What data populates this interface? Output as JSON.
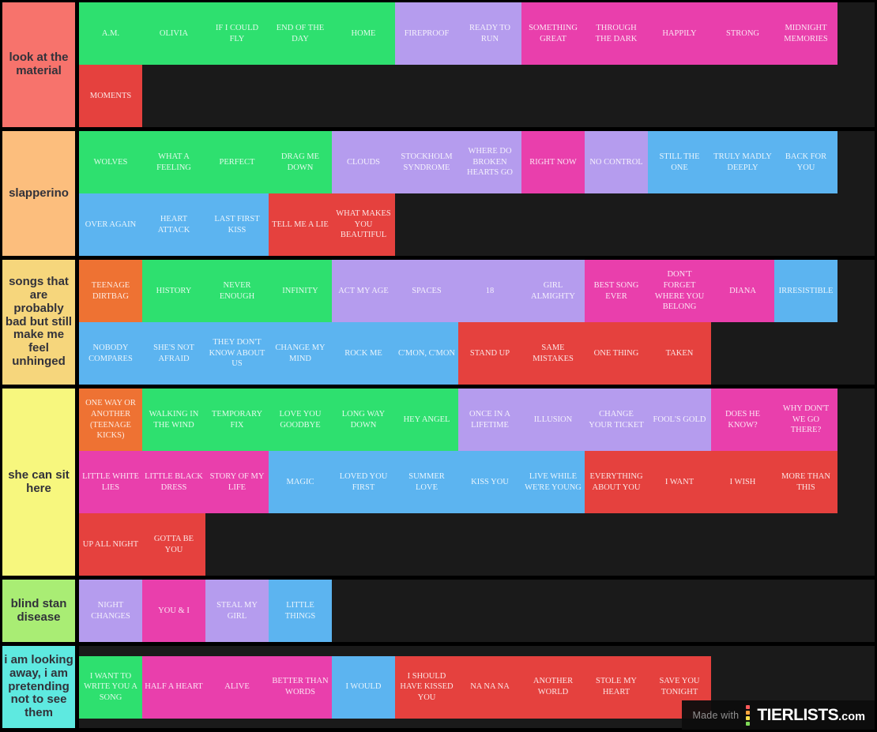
{
  "page": {
    "background": "#1a1a1a",
    "border_color": "#000000",
    "tile_text_color": "rgba(255,255,255,0.86)",
    "label_text_color": "#32323a"
  },
  "palette": {
    "green": "#2ee06f",
    "purple": "#b59cee",
    "magenta": "#e93fac",
    "blue": "#5cb4f0",
    "red": "#e5413e",
    "orange": "#ee7233"
  },
  "tiers": [
    {
      "label": "look at the material",
      "color": "#f7736c",
      "tiles": [
        {
          "t": "A.M.",
          "c": "green"
        },
        {
          "t": "OLIVIA",
          "c": "green"
        },
        {
          "t": "IF I COULD FLY",
          "c": "green"
        },
        {
          "t": "END OF THE DAY",
          "c": "green"
        },
        {
          "t": "HOME",
          "c": "green"
        },
        {
          "t": "FIREPROOF",
          "c": "purple"
        },
        {
          "t": "READY TO RUN",
          "c": "purple"
        },
        {
          "t": "SOMETHING GREAT",
          "c": "magenta"
        },
        {
          "t": "THROUGH THE DARK",
          "c": "magenta"
        },
        {
          "t": "HAPPILY",
          "c": "magenta"
        },
        {
          "t": "STRONG",
          "c": "magenta"
        },
        {
          "t": "MIDNIGHT MEMORIES",
          "c": "magenta"
        },
        {
          "t": "MOMENTS",
          "c": "red"
        }
      ]
    },
    {
      "label": "slapperino",
      "color": "#fcbe7d",
      "tiles": [
        {
          "t": "WOLVES",
          "c": "green"
        },
        {
          "t": "WHAT A FEELING",
          "c": "green"
        },
        {
          "t": "PERFECT",
          "c": "green"
        },
        {
          "t": "DRAG ME DOWN",
          "c": "green"
        },
        {
          "t": "CLOUDS",
          "c": "purple"
        },
        {
          "t": "STOCKHOLM SYNDROME",
          "c": "purple"
        },
        {
          "t": "WHERE DO BROKEN HEARTS GO",
          "c": "purple"
        },
        {
          "t": "RIGHT NOW",
          "c": "magenta"
        },
        {
          "t": "NO CONTROL",
          "c": "purple"
        },
        {
          "t": "STILL THE ONE",
          "c": "blue"
        },
        {
          "t": "TRULY MADLY DEEPLY",
          "c": "blue"
        },
        {
          "t": "BACK FOR YOU",
          "c": "blue"
        },
        {
          "t": "OVER AGAIN",
          "c": "blue"
        },
        {
          "t": "HEART ATTACK",
          "c": "blue"
        },
        {
          "t": "LAST FIRST KISS",
          "c": "blue"
        },
        {
          "t": "TELL ME A LIE",
          "c": "red"
        },
        {
          "t": "WHAT MAKES YOU BEAUTIFUL",
          "c": "red"
        }
      ]
    },
    {
      "label": "songs that are probably bad but still make me feel unhinged",
      "color": "#f6d67c",
      "tiles": [
        {
          "t": "TEENAGE DIRTBAG",
          "c": "orange"
        },
        {
          "t": "HISTORY",
          "c": "green"
        },
        {
          "t": "NEVER ENOUGH",
          "c": "green"
        },
        {
          "t": "INFINITY",
          "c": "green"
        },
        {
          "t": "ACT MY AGE",
          "c": "purple"
        },
        {
          "t": "SPACES",
          "c": "purple"
        },
        {
          "t": "18",
          "c": "purple"
        },
        {
          "t": "GIRL ALMIGHTY",
          "c": "purple"
        },
        {
          "t": "BEST SONG EVER",
          "c": "magenta"
        },
        {
          "t": "DON'T FORGET WHERE YOU BELONG",
          "c": "magenta"
        },
        {
          "t": "DIANA",
          "c": "magenta"
        },
        {
          "t": "IRRESISTIBLE",
          "c": "blue"
        },
        {
          "t": "NOBODY COMPARES",
          "c": "blue"
        },
        {
          "t": "SHE'S NOT AFRAID",
          "c": "blue"
        },
        {
          "t": "THEY DON'T KNOW ABOUT US",
          "c": "blue"
        },
        {
          "t": "CHANGE MY MIND",
          "c": "blue"
        },
        {
          "t": "ROCK ME",
          "c": "blue"
        },
        {
          "t": "C'MON, C'MON",
          "c": "blue"
        },
        {
          "t": "STAND UP",
          "c": "red"
        },
        {
          "t": "SAME MISTAKES",
          "c": "red"
        },
        {
          "t": "ONE THING",
          "c": "red"
        },
        {
          "t": "TAKEN",
          "c": "red"
        }
      ]
    },
    {
      "label": "she can sit here",
      "color": "#f7f77e",
      "tiles": [
        {
          "t": "ONE WAY OR ANOTHER (TEENAGE KICKS)",
          "c": "orange"
        },
        {
          "t": "WALKING IN THE WIND",
          "c": "green"
        },
        {
          "t": "TEMPORARY FIX",
          "c": "green"
        },
        {
          "t": "LOVE YOU GOODBYE",
          "c": "green"
        },
        {
          "t": "LONG WAY DOWN",
          "c": "green"
        },
        {
          "t": "HEY ANGEL",
          "c": "green"
        },
        {
          "t": "ONCE IN A LIFETIME",
          "c": "purple"
        },
        {
          "t": "ILLUSION",
          "c": "purple"
        },
        {
          "t": "CHANGE YOUR TICKET",
          "c": "purple"
        },
        {
          "t": "FOOL'S GOLD",
          "c": "purple"
        },
        {
          "t": "DOES HE KNOW?",
          "c": "magenta"
        },
        {
          "t": "WHY DON'T WE GO THERE?",
          "c": "magenta"
        },
        {
          "t": "LITTLE WHITE LIES",
          "c": "magenta"
        },
        {
          "t": "LITTLE BLACK DRESS",
          "c": "magenta"
        },
        {
          "t": "STORY OF MY LIFE",
          "c": "magenta"
        },
        {
          "t": "MAGIC",
          "c": "blue"
        },
        {
          "t": "LOVED YOU FIRST",
          "c": "blue"
        },
        {
          "t": "SUMMER LOVE",
          "c": "blue"
        },
        {
          "t": "KISS YOU",
          "c": "blue"
        },
        {
          "t": "LIVE WHILE WE'RE YOUNG",
          "c": "blue"
        },
        {
          "t": "EVERYTHING ABOUT YOU",
          "c": "red"
        },
        {
          "t": "I WANT",
          "c": "red"
        },
        {
          "t": "I WISH",
          "c": "red"
        },
        {
          "t": "MORE THAN THIS",
          "c": "red"
        },
        {
          "t": "UP ALL NIGHT",
          "c": "red"
        },
        {
          "t": "GOTTA BE YOU",
          "c": "red"
        }
      ]
    },
    {
      "label": "blind stan disease",
      "color": "#a9ed74",
      "tiles": [
        {
          "t": "NIGHT CHANGES",
          "c": "purple"
        },
        {
          "t": "YOU & I",
          "c": "magenta"
        },
        {
          "t": "STEAL MY GIRL",
          "c": "purple"
        },
        {
          "t": "LITTLE THINGS",
          "c": "blue"
        }
      ]
    },
    {
      "label": "i am looking away, i am pretending not to see them",
      "color": "#5ee9e0",
      "tall": true,
      "tiles": [
        {
          "t": "I WANT TO WRITE YOU A SONG",
          "c": "green"
        },
        {
          "t": "HALF A HEART",
          "c": "magenta"
        },
        {
          "t": "ALIVE",
          "c": "magenta"
        },
        {
          "t": "BETTER THAN WORDS",
          "c": "magenta"
        },
        {
          "t": "I WOULD",
          "c": "blue"
        },
        {
          "t": "I SHOULD HAVE KISSED YOU",
          "c": "red"
        },
        {
          "t": "NA NA NA",
          "c": "red"
        },
        {
          "t": "ANOTHER WORLD",
          "c": "red"
        },
        {
          "t": "STOLE MY HEART",
          "c": "red"
        },
        {
          "t": "SAVE YOU TONIGHT",
          "c": "red"
        }
      ]
    }
  ],
  "watermark": {
    "prefix": "Made with",
    "brand": "TIERLISTS",
    "suffix": ".com",
    "icon_colors": [
      "#ff5a5a",
      "#ffa43d",
      "#ffe14d",
      "#7ed957"
    ]
  }
}
